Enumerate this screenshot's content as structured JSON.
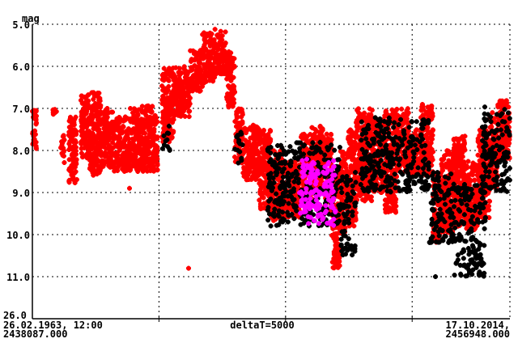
{
  "chart_data": {
    "type": "scatter",
    "ylabel": "mag",
    "y_inverted": true,
    "ylim": [
      5.0,
      11.0
    ],
    "y_ticks": [
      "5.0",
      "6.0",
      "7.0",
      "8.0",
      "9.0",
      "10.0",
      "11.0"
    ],
    "y_break_label": "26.0",
    "xlim": [
      2438087.0,
      2456948.0
    ],
    "x_start_label": [
      "26.02.1963, 12:00",
      "2438087.000"
    ],
    "x_end_label": [
      "17.10.2014,",
      "2456948.000"
    ],
    "x_center_label": "deltaT=5000",
    "x_grid_step": 5000,
    "grid": true,
    "series_colors": {
      "red": "#ff0000",
      "black": "#000000",
      "magenta": "#ff00ff"
    },
    "series_ranges_format": [
      "jd_start",
      "jd_end",
      "mag_bright",
      "mag_faint"
    ],
    "series": [
      {
        "color": "red",
        "ranges": [
          [
            2438087,
            2438247,
            7.0,
            8.0
          ],
          [
            2438886,
            2439046,
            7.0,
            7.2
          ],
          [
            2439206,
            2439366,
            7.6,
            8.3
          ],
          [
            2439526,
            2439845,
            7.2,
            8.8
          ],
          [
            2440005,
            2440325,
            6.6,
            8.2
          ],
          [
            2440325,
            2440804,
            6.6,
            8.6
          ],
          [
            2440804,
            2441284,
            7.0,
            8.4
          ],
          [
            2441284,
            2441923,
            7.2,
            8.5
          ],
          [
            2441923,
            2442403,
            7.0,
            8.5
          ],
          [
            2442403,
            2443042,
            6.9,
            8.5
          ],
          [
            2443202,
            2443682,
            6.0,
            7.8
          ],
          [
            2443682,
            2444321,
            6.0,
            7.2
          ],
          [
            2444321,
            2444801,
            5.6,
            6.6
          ],
          [
            2444801,
            2445280,
            5.2,
            6.4
          ],
          [
            2445280,
            2445760,
            5.1,
            6.2
          ],
          [
            2445760,
            2446080,
            5.6,
            7.0
          ],
          [
            2446080,
            2446399,
            7.0,
            8.3
          ],
          [
            2446399,
            2447039,
            7.4,
            8.7
          ],
          [
            2447039,
            2447518,
            7.5,
            9.4
          ],
          [
            2447518,
            2447998,
            8.0,
            9.7
          ],
          [
            2447998,
            2448637,
            8.2,
            9.6
          ],
          [
            2448637,
            2449117,
            7.6,
            9.2
          ],
          [
            2449117,
            2449596,
            7.4,
            9.0
          ],
          [
            2449596,
            2449916,
            7.5,
            9.5
          ],
          [
            2449916,
            2450236,
            8.5,
            10.8
          ],
          [
            2450236,
            2450555,
            8.0,
            10.0
          ],
          [
            2450555,
            2450875,
            7.5,
            9.8
          ],
          [
            2450875,
            2451514,
            7.0,
            9.2
          ],
          [
            2451514,
            2451994,
            7.2,
            9.0
          ],
          [
            2451994,
            2452474,
            7.0,
            9.5
          ],
          [
            2452474,
            2452953,
            7.0,
            8.5
          ],
          [
            2452953,
            2453433,
            7.5,
            8.6
          ],
          [
            2453433,
            2453912,
            6.9,
            8.6
          ],
          [
            2453912,
            2454232,
            8.5,
            10.2
          ],
          [
            2454232,
            2454711,
            8.0,
            10.0
          ],
          [
            2454711,
            2455191,
            7.6,
            9.8
          ],
          [
            2455191,
            2455671,
            8.2,
            9.9
          ],
          [
            2455671,
            2456150,
            7.5,
            9.6
          ],
          [
            2456150,
            2456470,
            7.1,
            8.9
          ],
          [
            2456470,
            2456948,
            6.8,
            8.2
          ]
        ],
        "points": [
          [
            2444257,
            10.8
          ],
          [
            2441923,
            8.9
          ]
        ]
      },
      {
        "color": "black",
        "ranges": [
          [
            2443202,
            2443522,
            7.4,
            8.0
          ],
          [
            2446080,
            2446399,
            7.5,
            8.3
          ],
          [
            2447358,
            2450236,
            7.8,
            9.8
          ],
          [
            2450236,
            2450875,
            8.5,
            10.5
          ],
          [
            2451035,
            2453753,
            7.2,
            9.0
          ],
          [
            2453753,
            2454711,
            8.5,
            10.2
          ],
          [
            2454711,
            2455990,
            8.8,
            11.0
          ],
          [
            2455831,
            2456948,
            6.9,
            9.0
          ]
        ],
        "points": [
          [
            2454008,
            11.0
          ],
          [
            2455351,
            10.9
          ]
        ]
      },
      {
        "color": "magenta",
        "ranges": [
          [
            2448637,
            2450076,
            8.2,
            9.8
          ]
        ],
        "points": []
      }
    ]
  }
}
